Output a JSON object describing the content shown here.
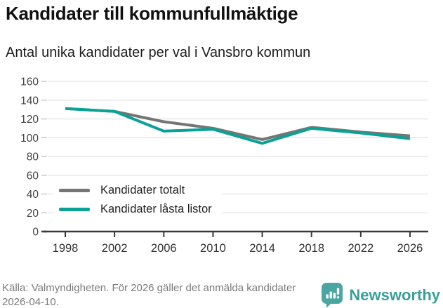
{
  "title": "Kandidater till kommunfullmäktige",
  "subtitle": "Antal unika kandidater per val i Vansbro kommun",
  "chart_data": {
    "type": "line",
    "x": [
      1998,
      2002,
      2006,
      2010,
      2014,
      2018,
      2022,
      2026
    ],
    "series": [
      {
        "name": "Kandidater totalt",
        "color": "#757575",
        "values": [
          131,
          128,
          117,
          110,
          98,
          111,
          106,
          102
        ]
      },
      {
        "name": "Kandidater låsta listor",
        "color": "#0aa296",
        "values": [
          131,
          128,
          107,
          109,
          94,
          110,
          105,
          99
        ]
      }
    ],
    "ylim": [
      0,
      160
    ],
    "yticks": [
      0,
      20,
      40,
      60,
      80,
      100,
      120,
      140,
      160
    ],
    "grid": true,
    "legend_position": "inside-bottom-left",
    "xlabel": "",
    "ylabel": ""
  },
  "palette": {
    "grid": "#e2e2e2",
    "axis": "#3a3a3a",
    "y_tick": "#c9c9c9",
    "tick_label": "#444444",
    "x_label": "#333333",
    "logo_bg": "#4ba5a1",
    "brand_text": "#3a9e99"
  },
  "footer": {
    "source": "Källa: Valmyndigheten. För 2026 gäller det anmälda kandidater 2026-04-10.",
    "brand": "Newsworthy"
  }
}
